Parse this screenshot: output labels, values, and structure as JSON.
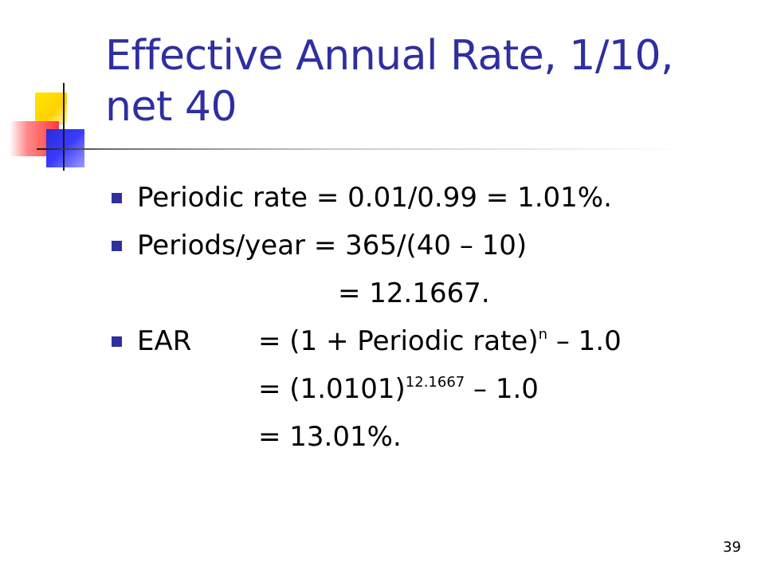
{
  "title": "Effective Annual Rate, 1/10, net 40",
  "lines": {
    "periodic_rate": "Periodic rate = 0.01/0.99 = 1.01%.",
    "periods_year": "Periods/year = 365/(40 – 10)",
    "periods_year_result": "= 12.1667.",
    "ear_label": "EAR",
    "ear_eq1_pre": "= (1 + Periodic rate)",
    "ear_eq1_exp": "n",
    "ear_eq1_post": " – 1.0",
    "ear_eq2_pre": "= (1.0101)",
    "ear_eq2_exp": "12.1667",
    "ear_eq2_post": " – 1.0",
    "ear_eq3": "= 13.01%."
  },
  "page_number": "39",
  "colors": {
    "title": "#2f2fa0",
    "bullet": "#2f2fa0"
  }
}
